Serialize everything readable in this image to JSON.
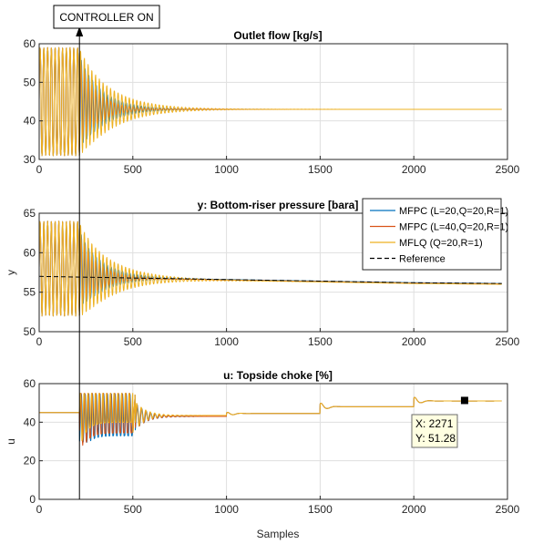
{
  "controller_label": "CONTROLLER ON",
  "controller_x": 215,
  "xlabel": "Samples",
  "colors": {
    "mfpc1": "#0072bd",
    "mfpc2": "#d95319",
    "mflq": "#edb120",
    "reference": "#000000"
  },
  "legend": [
    {
      "label": "MFPC (L=20,Q=20,R=1)",
      "color": "#0072bd",
      "style": "solid"
    },
    {
      "label": "MFPC (L=40,Q=20,R=1)",
      "color": "#d95319",
      "style": "solid"
    },
    {
      "label": "MFLQ (Q=20,R=1)",
      "color": "#edb120",
      "style": "solid"
    },
    {
      "label": "Reference",
      "color": "#000000",
      "style": "dashed"
    }
  ],
  "chart_data": [
    {
      "type": "line",
      "title": "Outlet flow [kg/s]",
      "ylabel": "",
      "xlim": [
        0,
        2500
      ],
      "ylim": [
        30,
        60
      ],
      "xticks": [
        0,
        500,
        1000,
        1500,
        2000,
        2500
      ],
      "yticks": [
        30,
        40,
        50,
        60
      ],
      "grid": true,
      "steady_value": 43,
      "oscillation": {
        "center": 45,
        "amplitude": 14,
        "period_samples": 20
      },
      "settle_samples": [
        410,
        300,
        550
      ]
    },
    {
      "type": "line",
      "title": "y: Bottom-riser pressure [bara]",
      "ylabel": "y",
      "xlim": [
        0,
        2500
      ],
      "ylim": [
        50,
        65
      ],
      "xticks": [
        0,
        500,
        1000,
        1500,
        2000,
        2500
      ],
      "yticks": [
        50,
        55,
        60,
        65
      ],
      "grid": true,
      "legend_position": "top-right",
      "oscillation": {
        "center": 58,
        "amplitude": 6,
        "period_samples": 20
      },
      "reference": [
        {
          "x": 0,
          "y": 57.0
        },
        {
          "x": 500,
          "y": 56.8
        },
        {
          "x": 1000,
          "y": 56.6
        },
        {
          "x": 1500,
          "y": 56.4
        },
        {
          "x": 2000,
          "y": 56.2
        },
        {
          "x": 2470,
          "y": 56.1
        }
      ]
    },
    {
      "type": "line",
      "title": "u: Topside choke [%]",
      "ylabel": "u",
      "xlim": [
        0,
        2500
      ],
      "ylim": [
        0,
        60
      ],
      "xticks": [
        0,
        500,
        1000,
        1500,
        2000,
        2500
      ],
      "yticks": [
        0,
        20,
        40,
        60
      ],
      "grid": true,
      "initial_value": 45,
      "steps": [
        {
          "x": 1000,
          "y": 45
        },
        {
          "x": 1500,
          "y": 48
        },
        {
          "x": 2000,
          "y": 51
        }
      ],
      "datatip": {
        "x_label": "X: 2271",
        "y_label": "Y: 51.28",
        "x": 2271,
        "y": 51.28
      }
    }
  ]
}
